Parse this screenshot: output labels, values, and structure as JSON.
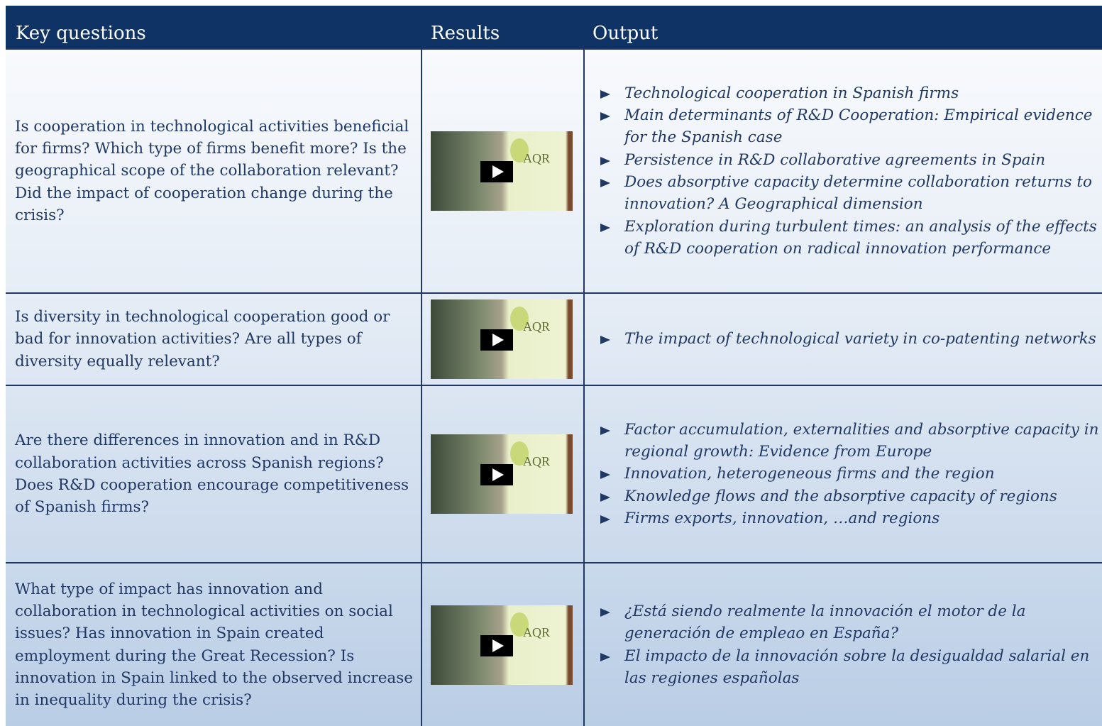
{
  "header": {
    "columns": [
      "Key questions",
      "Results",
      "Output"
    ]
  },
  "table": {
    "rows": [
      {
        "question": "Is cooperation in technological activities beneficial for firms? Which type of firms benefit more? Is the geographical scope of the collaboration relevant? Did the impact of cooperation change during the crisis?",
        "video_label": "AQR",
        "outputs": [
          "Technological cooperation in Spanish firms",
          "Main determinants of R&D Cooperation: Empirical evidence for the Spanish case",
          "Persistence in R&D collaborative agreements in Spain",
          "Does absorptive capacity determine collaboration returns to innovation? A Geographical dimension",
          "Exploration during turbulent times: an analysis of the effects of R&D cooperation on radical innovation performance"
        ]
      },
      {
        "question": "Is diversity in technological cooperation good or bad for innovation activities? Are all types of diversity equally relevant?",
        "video_label": "AQR",
        "outputs": [
          "The impact of technological variety in co-patenting networks"
        ]
      },
      {
        "question": "Are there differences in innovation and in R&D  collaboration activities across Spanish regions? Does R&D cooperation encourage competitiveness of Spanish firms?",
        "video_label": "AQR",
        "outputs": [
          "Factor accumulation, externalities and absorptive capacity in regional growth: Evidence from Europe",
          "Innovation, heterogeneous firms and the region",
          "Knowledge flows and the absorptive capacity of regions",
          "Firms exports, innovation, …and  regions"
        ]
      },
      {
        "question": "What type of impact has innovation and collaboration in technological activities on social issues? Has innovation in Spain created employment during the Great Recession? Is  innovation in Spain linked to the observed increase in inequality during the crisis?",
        "video_label": "AQR",
        "outputs": [
          "¿Está siendo realmente la innovación el motor de la generación de empleao en España?",
          "El impacto de la innovación sobre la desigualdad salarial en las regiones españolas"
        ]
      }
    ]
  }
}
